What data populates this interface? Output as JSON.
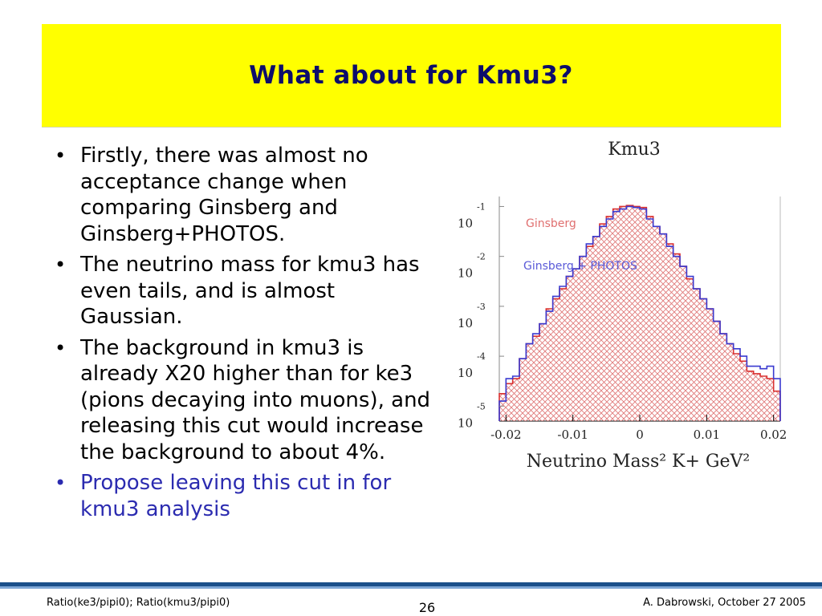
{
  "slide": {
    "title": "What about for Kmu3?",
    "bullets": [
      {
        "text": "Firstly, there was almost no acceptance change when comparing Ginsberg and Ginsberg+PHOTOS.",
        "color": "#000000"
      },
      {
        "text": "The neutrino mass for kmu3 has even tails, and is almost Gaussian.",
        "color": "#000000"
      },
      {
        "text": "The background in kmu3 is already X20 higher than for ke3 (pions decaying into muons), and releasing this cut would increase the background to about 4%.",
        "color": "#000000"
      },
      {
        "text": "Propose leaving this cut in for kmu3 analysis",
        "color": "#2b2bb0"
      }
    ],
    "bullet_glyph": "•"
  },
  "footer": {
    "left": "Ratio(ke3/pipi0); Ratio(kmu3/pipi0)",
    "page_number": "26",
    "right": "A. Dabrowski, October 27 2005"
  },
  "chart_data": {
    "type": "histogram",
    "title": "Kmu3",
    "xlabel": "Neutrino Mass² K+   GeV²",
    "x_ticks": [
      "-0.02",
      "-0.01",
      "0",
      "0.01",
      "0.02"
    ],
    "y_scale": "log",
    "y_tick_labels": [
      {
        "base": "10",
        "exp": "-1"
      },
      {
        "base": "10",
        "exp": "-2"
      },
      {
        "base": "10",
        "exp": "-3"
      },
      {
        "base": "10",
        "exp": "-4"
      },
      {
        "base": "10",
        "exp": "-5"
      }
    ],
    "xlim": [
      -0.021,
      0.021
    ],
    "ylim_log10": [
      -5.3,
      -0.8
    ],
    "bin_edges_start": -0.021,
    "bin_width": 0.001,
    "series": [
      {
        "name": "Ginsberg",
        "color": "#d93030",
        "hatched": true,
        "log10_values": [
          -4.75,
          -4.55,
          -4.45,
          -4.05,
          -3.75,
          -3.6,
          -3.35,
          -3.05,
          -2.85,
          -2.65,
          -2.4,
          -2.25,
          -2.0,
          -1.8,
          -1.6,
          -1.35,
          -1.2,
          -1.05,
          -1.0,
          -0.98,
          -1.0,
          -1.02,
          -1.2,
          -1.4,
          -1.55,
          -1.75,
          -1.95,
          -2.2,
          -2.45,
          -2.65,
          -2.85,
          -3.05,
          -3.3,
          -3.55,
          -3.75,
          -3.95,
          -4.1,
          -4.3,
          -4.35,
          -4.4,
          -4.45,
          -4.7
        ]
      },
      {
        "name": "Ginsberg + PHOTOS",
        "color": "#3a3ad0",
        "hatched": false,
        "log10_values": [
          -4.9,
          -4.45,
          -4.4,
          -4.05,
          -3.75,
          -3.55,
          -3.35,
          -3.1,
          -2.8,
          -2.6,
          -2.4,
          -2.25,
          -2.0,
          -1.75,
          -1.6,
          -1.4,
          -1.25,
          -1.1,
          -1.05,
          -1.0,
          -1.02,
          -1.05,
          -1.25,
          -1.4,
          -1.55,
          -1.8,
          -2.0,
          -2.2,
          -2.4,
          -2.65,
          -2.85,
          -3.05,
          -3.3,
          -3.55,
          -3.75,
          -3.85,
          -4.0,
          -4.2,
          -4.2,
          -4.25,
          -4.2,
          -4.45
        ]
      }
    ]
  }
}
